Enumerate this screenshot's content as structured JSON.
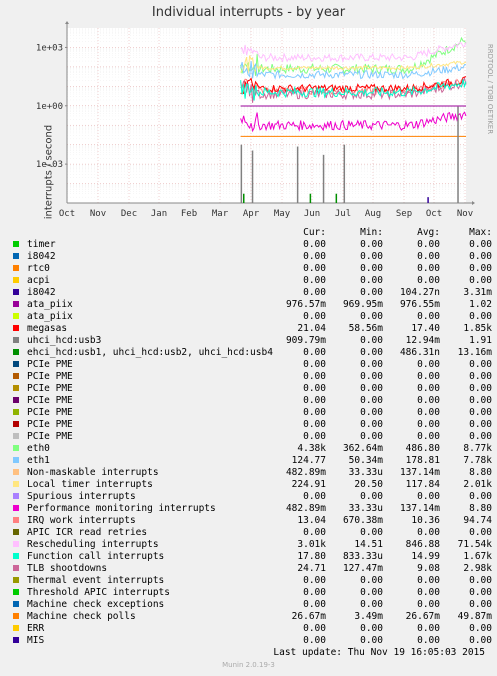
{
  "title": "Individual interrupts - by year",
  "side_label": "RRDTOOL / TOBI OETIKER",
  "footer": "Last update:  Thu Nov 19 16:05:03 2015",
  "munin_version": "Munin 2.0.19-3",
  "legend_headers": [
    "Cur:",
    "Min:",
    "Avg:",
    "Max:"
  ],
  "chart_data": {
    "type": "line",
    "ylabel": "interrupts / second",
    "yscale": "log",
    "ylim": [
      1e-05,
      10000
    ],
    "ytick_labels": [
      "1e+03",
      "1e+00",
      "1e-03"
    ],
    "ytick_values": [
      1000,
      1,
      0.001
    ],
    "x": [
      "Oct",
      "Nov",
      "Dec",
      "Jan",
      "Feb",
      "Mar",
      "Apr",
      "May",
      "Jun",
      "Jul",
      "Aug",
      "Sep",
      "Oct",
      "Nov"
    ],
    "grid": true,
    "series": [
      {
        "name": "timer",
        "color": "#00cc00",
        "cur": "0.00",
        "min": "0.00",
        "avg": "0.00",
        "max": "0.00"
      },
      {
        "name": "i8042",
        "color": "#0066b3",
        "cur": "0.00",
        "min": "0.00",
        "avg": "0.00",
        "max": "0.00"
      },
      {
        "name": "rtc0",
        "color": "#ff8000",
        "cur": "0.00",
        "min": "0.00",
        "avg": "0.00",
        "max": "0.00"
      },
      {
        "name": "acpi",
        "color": "#ffcc00",
        "cur": "0.00",
        "min": "0.00",
        "avg": "0.00",
        "max": "0.00"
      },
      {
        "name": "i8042",
        "color": "#330099",
        "cur": "0.00",
        "min": "0.00",
        "avg": "104.27n",
        "max": "3.31m"
      },
      {
        "name": "ata_piix",
        "color": "#990099",
        "cur": "976.57m",
        "min": "969.95m",
        "avg": "976.55m",
        "max": "1.02"
      },
      {
        "name": "ata_piix",
        "color": "#ccff00",
        "cur": "0.00",
        "min": "0.00",
        "avg": "0.00",
        "max": "0.00"
      },
      {
        "name": "megasas",
        "color": "#ff0000",
        "cur": "21.04",
        "min": "58.56m",
        "avg": "17.40",
        "max": "1.85k"
      },
      {
        "name": "uhci_hcd:usb3",
        "color": "#808080",
        "cur": "909.79m",
        "min": "0.00",
        "avg": "12.94m",
        "max": "1.91"
      },
      {
        "name": "ehci_hcd:usb1, uhci_hcd:usb2, uhci_hcd:usb4",
        "color": "#008f00",
        "cur": "0.00",
        "min": "0.00",
        "avg": "486.31n",
        "max": "13.16m"
      },
      {
        "name": "PCIe PME",
        "color": "#00487d",
        "cur": "0.00",
        "min": "0.00",
        "avg": "0.00",
        "max": "0.00"
      },
      {
        "name": "PCIe PME",
        "color": "#b35a00",
        "cur": "0.00",
        "min": "0.00",
        "avg": "0.00",
        "max": "0.00"
      },
      {
        "name": "PCIe PME",
        "color": "#b38f00",
        "cur": "0.00",
        "min": "0.00",
        "avg": "0.00",
        "max": "0.00"
      },
      {
        "name": "PCIe PME",
        "color": "#6b006b",
        "cur": "0.00",
        "min": "0.00",
        "avg": "0.00",
        "max": "0.00"
      },
      {
        "name": "PCIe PME",
        "color": "#8fb300",
        "cur": "0.00",
        "min": "0.00",
        "avg": "0.00",
        "max": "0.00"
      },
      {
        "name": "PCIe PME",
        "color": "#b30000",
        "cur": "0.00",
        "min": "0.00",
        "avg": "0.00",
        "max": "0.00"
      },
      {
        "name": "PCIe PME",
        "color": "#bebebe",
        "cur": "0.00",
        "min": "0.00",
        "avg": "0.00",
        "max": "0.00"
      },
      {
        "name": "eth0",
        "color": "#80ff80",
        "cur": "4.38k",
        "min": "362.64m",
        "avg": "486.80",
        "max": "8.77k"
      },
      {
        "name": "eth1",
        "color": "#80c9ff",
        "cur": "124.77",
        "min": "50.34m",
        "avg": "178.81",
        "max": "7.78k"
      },
      {
        "name": "Non-maskable interrupts",
        "color": "#ffc080",
        "cur": "482.89m",
        "min": "33.33u",
        "avg": "137.14m",
        "max": "8.80"
      },
      {
        "name": "Local timer interrupts",
        "color": "#ffe680",
        "cur": "224.91",
        "min": "20.50",
        "avg": "117.84",
        "max": "2.01k"
      },
      {
        "name": "Spurious interrupts",
        "color": "#aa80ff",
        "cur": "0.00",
        "min": "0.00",
        "avg": "0.00",
        "max": "0.00"
      },
      {
        "name": "Performance monitoring interrupts",
        "color": "#ee00cc",
        "cur": "482.89m",
        "min": "33.33u",
        "avg": "137.14m",
        "max": "8.80"
      },
      {
        "name": "IRQ work interrupts",
        "color": "#ff8080",
        "cur": "13.04",
        "min": "670.38m",
        "avg": "10.36",
        "max": "94.74"
      },
      {
        "name": "APIC ICR read retries",
        "color": "#666600",
        "cur": "0.00",
        "min": "0.00",
        "avg": "0.00",
        "max": "0.00"
      },
      {
        "name": "Rescheduling interrupts",
        "color": "#ffbfff",
        "cur": "3.01k",
        "min": "14.51",
        "avg": "846.88",
        "max": "71.54k"
      },
      {
        "name": "Function call interrupts",
        "color": "#00ffcc",
        "cur": "17.80",
        "min": "833.33u",
        "avg": "14.99",
        "max": "1.67k"
      },
      {
        "name": "TLB shootdowns",
        "color": "#cc6699",
        "cur": "24.71",
        "min": "127.47m",
        "avg": "9.08",
        "max": "2.98k"
      },
      {
        "name": "Thermal event interrupts",
        "color": "#999900",
        "cur": "0.00",
        "min": "0.00",
        "avg": "0.00",
        "max": "0.00"
      },
      {
        "name": "Threshold APIC interrupts",
        "color": "#00cc00",
        "cur": "0.00",
        "min": "0.00",
        "avg": "0.00",
        "max": "0.00"
      },
      {
        "name": "Machine check exceptions",
        "color": "#0066b3",
        "cur": "0.00",
        "min": "0.00",
        "avg": "0.00",
        "max": "0.00"
      },
      {
        "name": "Machine check polls",
        "color": "#ff8000",
        "cur": "26.67m",
        "min": "3.49m",
        "avg": "26.67m",
        "max": "49.87m"
      },
      {
        "name": "ERR",
        "color": "#ffcc00",
        "cur": "0.00",
        "min": "0.00",
        "avg": "0.00",
        "max": "0.00"
      },
      {
        "name": "MIS",
        "color": "#330099",
        "cur": "0.00",
        "min": "0.00",
        "avg": "0.00",
        "max": "0.00"
      }
    ]
  }
}
